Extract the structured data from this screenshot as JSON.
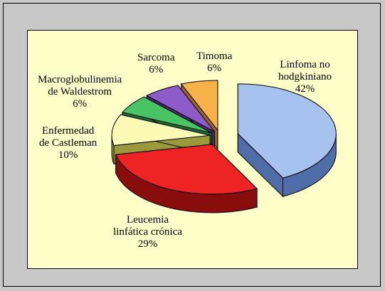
{
  "chart_data": {
    "type": "pie",
    "style": "3d-exploded",
    "title": "",
    "slices": [
      {
        "label_lines": [
          "Linfoma no",
          "hodgkiniano"
        ],
        "value": 42,
        "value_label": "42%",
        "top_color": "#a6c2ee",
        "side_color": "#4f6ea8"
      },
      {
        "label_lines": [
          "Leucemia",
          "linfática crónica"
        ],
        "value": 29,
        "value_label": "29%",
        "top_color": "#ee2424",
        "side_color": "#8a0d0d"
      },
      {
        "label_lines": [
          "Enfermedad",
          "de Castleman"
        ],
        "value": 10,
        "value_label": "10%",
        "top_color": "#fafab4",
        "side_color": "#9a9a3c"
      },
      {
        "label_lines": [
          "Macroglobulinemia",
          "de Waldestrom"
        ],
        "value": 6,
        "value_label": "6%",
        "top_color": "#48c464",
        "side_color": "#1b6e32"
      },
      {
        "label_lines": [
          "Sarcoma"
        ],
        "value": 6,
        "value_label": "6%",
        "top_color": "#8e5cc8",
        "side_color": "#4a2a7a"
      },
      {
        "label_lines": [
          "Timoma"
        ],
        "value": 6,
        "value_label": "6%",
        "top_color": "#f6b248",
        "side_color": "#9a6620"
      }
    ],
    "legend": "none"
  }
}
